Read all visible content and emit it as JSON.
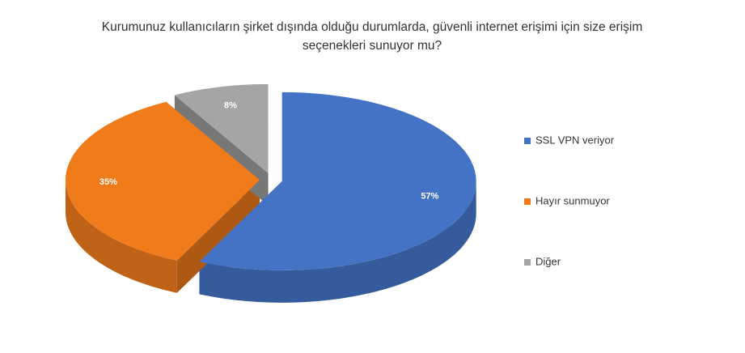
{
  "chart_data": {
    "type": "pie3d",
    "title": "Kurumunuz kullanıcıların şirket dışında olduğu durumlarda, güvenli internet erişimi için size erişim seçenekleri sunuyor mu?",
    "categories": [
      "SSL VPN veriyor",
      "Hayır sunmuyor",
      "Diğer"
    ],
    "values": [
      57,
      35,
      8
    ],
    "value_labels": [
      "57%",
      "35%",
      "8%"
    ],
    "colors": [
      "#4472c4",
      "#f07b1b",
      "#a5a5a5"
    ],
    "legend": "right"
  }
}
